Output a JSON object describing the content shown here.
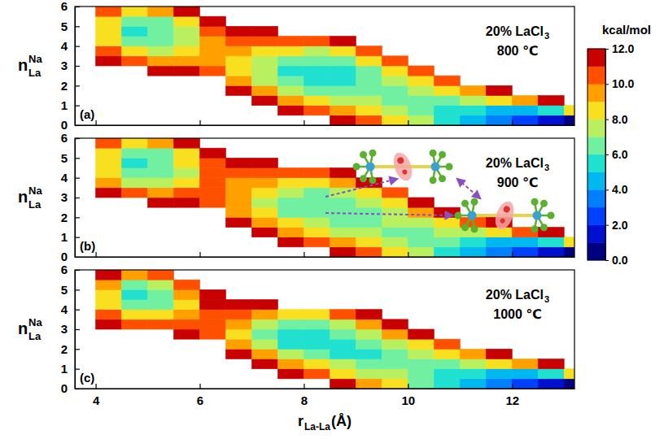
{
  "chart_data": {
    "type": "heatmap",
    "xlabel": {
      "base": "r",
      "sub": "La-La",
      "suffix": "(Å)"
    },
    "ylabel": {
      "base": "n",
      "sup": "Na",
      "sub": "La"
    },
    "xlim": [
      3.6,
      13.2
    ],
    "xticks": [
      4,
      6,
      8,
      10,
      12
    ],
    "ylim": [
      0,
      6
    ],
    "yticks": [
      0,
      1,
      2,
      3,
      4,
      5,
      6
    ],
    "x": [
      3.75,
      4.25,
      4.75,
      5.25,
      5.75,
      6.25,
      6.75,
      7.25,
      7.75,
      8.25,
      8.75,
      9.25,
      9.75,
      10.25,
      10.75,
      11.25,
      11.75,
      12.25,
      12.75,
      13.25
    ],
    "y": [
      0.25,
      0.75,
      1.25,
      1.75,
      2.25,
      2.75,
      3.25,
      3.75,
      4.25,
      4.75,
      5.25,
      5.75
    ],
    "colorbar": {
      "title": "kcal/mol",
      "range": [
        0,
        12
      ],
      "ticks": [
        {
          "value": 0,
          "label": "0.0"
        },
        {
          "value": 2,
          "label": "2.0"
        },
        {
          "value": 4,
          "label": "4.0"
        },
        {
          "value": 6,
          "label": "6.0"
        },
        {
          "value": 8,
          "label": "8.0"
        },
        {
          "value": 10,
          "label": "10.0"
        },
        {
          "value": 12,
          "label": "12.0"
        }
      ],
      "colors": [
        "#000080",
        "#0010d0",
        "#0040ff",
        "#0080ff",
        "#00b8f0",
        "#20e0d0",
        "#70f0a0",
        "#b8f060",
        "#f8e020",
        "#ffa000",
        "#ff5000",
        "#c80000"
      ]
    },
    "panels": [
      {
        "label": "(a)",
        "composition": {
          "text": "20% LaCl",
          "sub": "3"
        },
        "temperature": "800 ℃",
        "z": [
          [
            null,
            null,
            null,
            null,
            null,
            null,
            null,
            null,
            null,
            null,
            11,
            10,
            8.5,
            7,
            5.5,
            4,
            3,
            2,
            1,
            0.5
          ],
          [
            null,
            null,
            null,
            null,
            null,
            null,
            null,
            null,
            11.5,
            10.5,
            9,
            8,
            7,
            6.5,
            5.5,
            5,
            4.5,
            4.5,
            5.5,
            8
          ],
          [
            null,
            null,
            null,
            null,
            null,
            null,
            null,
            11.5,
            9.5,
            8.5,
            7.5,
            7,
            6.5,
            6.5,
            6.5,
            7,
            8,
            9.5,
            11,
            null
          ],
          [
            null,
            null,
            null,
            null,
            null,
            null,
            11.5,
            9.5,
            7.5,
            6.5,
            6,
            6,
            6.5,
            7,
            8,
            9.5,
            11.5,
            null,
            null,
            null
          ],
          [
            null,
            null,
            null,
            null,
            null,
            null,
            9.5,
            7.5,
            6,
            5.5,
            5.5,
            6,
            7,
            8.5,
            10.5,
            null,
            null,
            null,
            null,
            null
          ],
          [
            null,
            null,
            null,
            11.5,
            11,
            10.5,
            8.5,
            7,
            5.5,
            5,
            5.5,
            6.5,
            8,
            10.5,
            null,
            null,
            null,
            null,
            null,
            null
          ],
          [
            null,
            11.5,
            10,
            9.5,
            9.5,
            9.5,
            8.5,
            7.5,
            6.5,
            6,
            6.5,
            8,
            10,
            null,
            null,
            null,
            null,
            null,
            null,
            null
          ],
          [
            null,
            10,
            8,
            7.5,
            8,
            9.5,
            9.5,
            8.5,
            8,
            7.5,
            8.5,
            10.5,
            null,
            null,
            null,
            null,
            null,
            null,
            null,
            null
          ],
          [
            null,
            8.5,
            6.5,
            6.5,
            7.5,
            9.5,
            10.5,
            10,
            10,
            10,
            11,
            null,
            null,
            null,
            null,
            null,
            null,
            null,
            null,
            null
          ],
          [
            null,
            8,
            5.5,
            6,
            7.5,
            10,
            11.5,
            11.5,
            null,
            null,
            null,
            null,
            null,
            null,
            null,
            null,
            null,
            null,
            null,
            null
          ],
          [
            null,
            8.5,
            6,
            6.5,
            8.5,
            11.5,
            null,
            null,
            null,
            null,
            null,
            null,
            null,
            null,
            null,
            null,
            null,
            null,
            null,
            null
          ],
          [
            null,
            10,
            8.5,
            9,
            11,
            null,
            null,
            null,
            null,
            null,
            null,
            null,
            null,
            null,
            null,
            null,
            null,
            null,
            null,
            null
          ]
        ]
      },
      {
        "label": "(b)",
        "composition": {
          "text": "20% LaCl",
          "sub": "3"
        },
        "temperature": "900 ℃",
        "z": [
          [
            null,
            null,
            null,
            null,
            null,
            null,
            null,
            null,
            null,
            null,
            11,
            10,
            8.5,
            7,
            5.5,
            4,
            3,
            2,
            1.5,
            0.5
          ],
          [
            null,
            null,
            null,
            null,
            null,
            null,
            null,
            null,
            11.5,
            10.5,
            9,
            8,
            7,
            6.5,
            6,
            5,
            4.5,
            4,
            5,
            8
          ],
          [
            null,
            null,
            null,
            null,
            null,
            null,
            null,
            11.5,
            9.5,
            8.5,
            7.5,
            7,
            6.5,
            6.5,
            7,
            7.5,
            8.5,
            10,
            11.5,
            null
          ],
          [
            null,
            null,
            null,
            null,
            null,
            null,
            11.5,
            9.5,
            8,
            7,
            6.5,
            6.5,
            7,
            7.5,
            8.5,
            10,
            11.5,
            null,
            null,
            null
          ],
          [
            null,
            null,
            null,
            null,
            null,
            null,
            9.5,
            8,
            6.5,
            6,
            6,
            6.5,
            7.5,
            9,
            11,
            null,
            null,
            null,
            null,
            null
          ],
          [
            null,
            null,
            null,
            11.5,
            11,
            10.5,
            9,
            7.5,
            6.5,
            6,
            6,
            7,
            8.5,
            11,
            null,
            null,
            null,
            null,
            null,
            null
          ],
          [
            null,
            11.5,
            10,
            9.5,
            10,
            10,
            9,
            8,
            7,
            6.5,
            7,
            8.5,
            10.5,
            null,
            null,
            null,
            null,
            null,
            null,
            null
          ],
          [
            null,
            9.5,
            7.5,
            7.5,
            8.5,
            10,
            9.5,
            9,
            8.5,
            8,
            9,
            11,
            null,
            null,
            null,
            null,
            null,
            null,
            null,
            null
          ],
          [
            null,
            8.5,
            6,
            6,
            7.5,
            10,
            10.5,
            10.5,
            10,
            10.5,
            11.5,
            null,
            null,
            null,
            null,
            null,
            null,
            null,
            null,
            null
          ],
          [
            null,
            8,
            5.5,
            6,
            8,
            10.5,
            11.5,
            11.5,
            null,
            null,
            null,
            null,
            null,
            null,
            null,
            null,
            null,
            null,
            null,
            null
          ],
          [
            null,
            8.5,
            6,
            6.5,
            8.5,
            11.5,
            null,
            null,
            null,
            null,
            null,
            null,
            null,
            null,
            null,
            null,
            null,
            null,
            null,
            null
          ],
          [
            null,
            10,
            8.5,
            9,
            11,
            null,
            null,
            null,
            null,
            null,
            null,
            null,
            null,
            null,
            null,
            null,
            null,
            null,
            null,
            null
          ]
        ]
      },
      {
        "label": "(c)",
        "composition": {
          "text": "20% LaCl",
          "sub": "3"
        },
        "temperature": "1000 ℃",
        "z": [
          [
            null,
            null,
            null,
            null,
            null,
            null,
            null,
            null,
            null,
            null,
            11,
            9.5,
            8,
            6.5,
            5,
            4,
            3,
            2,
            1,
            0.5
          ],
          [
            null,
            null,
            null,
            null,
            null,
            null,
            null,
            null,
            11,
            10,
            8.5,
            7.5,
            7,
            6,
            5.5,
            5,
            4.5,
            4.5,
            5.5,
            8
          ],
          [
            null,
            null,
            null,
            null,
            null,
            null,
            null,
            11,
            9,
            8,
            7,
            6.5,
            6,
            6.5,
            6.5,
            7,
            8,
            9.5,
            11,
            null
          ],
          [
            null,
            null,
            null,
            null,
            null,
            null,
            11.5,
            9,
            7,
            6,
            5.5,
            5.5,
            6,
            7,
            8,
            9.5,
            11.5,
            null,
            null,
            null
          ],
          [
            null,
            null,
            null,
            null,
            null,
            null,
            9,
            7,
            5.5,
            5,
            5.5,
            6,
            7,
            8.5,
            10.5,
            null,
            null,
            null,
            null,
            null
          ],
          [
            null,
            null,
            null,
            null,
            11.5,
            10.5,
            8.5,
            6.5,
            5.5,
            5.5,
            6,
            7,
            9,
            11,
            null,
            null,
            null,
            null,
            null,
            null
          ],
          [
            null,
            11.5,
            10.5,
            10,
            10,
            10,
            9,
            7.5,
            6.5,
            6.5,
            7.5,
            9,
            11,
            null,
            null,
            null,
            null,
            null,
            null,
            null
          ],
          [
            null,
            10,
            8,
            8,
            9,
            10.5,
            10,
            9,
            8.5,
            8.5,
            10,
            11.5,
            null,
            null,
            null,
            null,
            null,
            null,
            null,
            null
          ],
          [
            null,
            8.5,
            6,
            6.5,
            8.5,
            11,
            11.5,
            11.5,
            null,
            null,
            null,
            null,
            null,
            null,
            null,
            null,
            null,
            null,
            null,
            null
          ],
          [
            null,
            8,
            5.5,
            6.5,
            9,
            11.5,
            null,
            null,
            null,
            null,
            null,
            null,
            null,
            null,
            null,
            null,
            null,
            null,
            null,
            null
          ],
          [
            null,
            9,
            6.5,
            7.5,
            10,
            null,
            null,
            null,
            null,
            null,
            null,
            null,
            null,
            null,
            null,
            null,
            null,
            null,
            null,
            null
          ],
          [
            null,
            11,
            9.5,
            10.5,
            null,
            null,
            null,
            null,
            null,
            null,
            null,
            null,
            null,
            null,
            null,
            null,
            null,
            null,
            null,
            null
          ]
        ]
      }
    ]
  }
}
